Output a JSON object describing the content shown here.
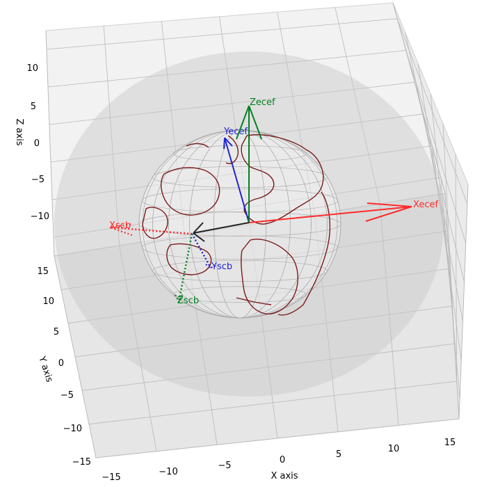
{
  "chart_data": {
    "type": "3d-scatter",
    "axes": {
      "xlabel": "X axis",
      "ylabel": "Y axis",
      "zlabel": "Z axis",
      "xlim": [
        -15,
        15
      ],
      "ylim": [
        -15,
        15
      ],
      "zlim": [
        -15,
        15
      ],
      "x_ticks": [
        "−15",
        "−10",
        "−5",
        "0",
        "5",
        "10",
        "15"
      ],
      "y_ticks": [
        "15",
        "10",
        "5",
        "0",
        "−5",
        "−10",
        "−15"
      ],
      "z_ticks": [
        "10",
        "5",
        "0",
        "−5",
        "−10"
      ],
      "grid": true
    },
    "objects": {
      "outer_sphere": {
        "shape": "translucent sphere",
        "color": "#bdbdbd"
      },
      "earth": {
        "shape": "wireframe globe with coastlines",
        "grid_color": "#9e9e9e",
        "coast_color": "#7b1a1a"
      }
    },
    "vectors": [
      {
        "label": "Xecef",
        "color": "#ff2a2a",
        "style": "solid"
      },
      {
        "label": "Yecef",
        "color": "#2323d4",
        "style": "solid"
      },
      {
        "label": "Zecef",
        "color": "#008020",
        "style": "solid"
      },
      {
        "label": "Xscb",
        "color": "#ff2a2a",
        "style": "dotted"
      },
      {
        "label": "Yscb",
        "color": "#2323d4",
        "style": "dotted"
      },
      {
        "label": "Zscb",
        "color": "#008020",
        "style": "dotted"
      },
      {
        "label": "",
        "color": "#222222",
        "style": "solid"
      }
    ]
  }
}
